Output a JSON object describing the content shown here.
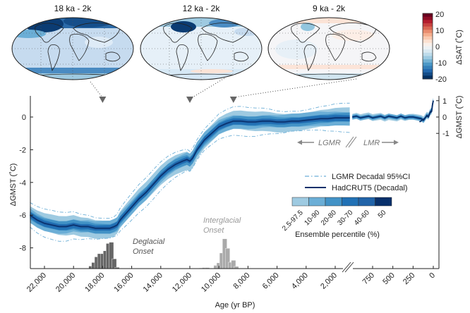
{
  "maps": [
    {
      "title": "18 ka - 2k",
      "anomaly_level": "strong-cooling"
    },
    {
      "title": "12 ka - 2k",
      "anomaly_level": "moderate-cooling"
    },
    {
      "title": "9 ka - 2k",
      "anomaly_level": "near-zero"
    }
  ],
  "colorbar": {
    "label": "ΔSAT (˚C)",
    "ticks": [
      "20",
      "10",
      "0",
      "-10",
      "-20"
    ],
    "range": [
      -20,
      20
    ],
    "colors": [
      "#67001f",
      "#b2182b",
      "#d6604d",
      "#f4a582",
      "#fddbc7",
      "#f7f7f7",
      "#d1e5f0",
      "#92c5de",
      "#4393c3",
      "#2166ac",
      "#053061"
    ]
  },
  "chart_data": {
    "type": "area",
    "title": "",
    "xlabel": "Age (yr BP)",
    "ylabel_left": "ΔGMST (˚C)",
    "ylabel_right": "ΔGMST (˚C)",
    "left_panel": {
      "name": "LGMR",
      "xlim": [
        23000,
        0
      ],
      "ylim": [
        -9.2,
        1.3
      ],
      "x_ticks": [
        22000,
        20000,
        18000,
        16000,
        14000,
        12000,
        10000,
        8000,
        6000,
        4000,
        2000
      ],
      "x_tick_labels": [
        "22,000",
        "20,000",
        "18,000",
        "16,000",
        "14,000",
        "12,000",
        "10,000",
        "8,000",
        "6,000",
        "4,000",
        "2,000"
      ],
      "y_ticks": [
        0,
        -2,
        -4,
        -6,
        -8
      ],
      "y_tick_labels": [
        "0",
        "-2",
        "-4",
        "-6",
        "-8"
      ],
      "median": {
        "x": [
          23000,
          22500,
          22000,
          21500,
          21000,
          20500,
          20000,
          19500,
          19000,
          18500,
          18000,
          17500,
          17200,
          17000,
          16800,
          16500,
          16000,
          15500,
          15000,
          14500,
          14000,
          13500,
          13000,
          12500,
          12200,
          12000,
          11800,
          11500,
          11000,
          10500,
          10000,
          9500,
          9000,
          8500,
          8000,
          7500,
          7000,
          6500,
          6000,
          5500,
          5000,
          4500,
          4000,
          3500,
          3000,
          2500,
          2000,
          1500,
          1000
        ],
        "y": [
          -6.0,
          -6.3,
          -6.5,
          -6.6,
          -6.7,
          -6.7,
          -6.6,
          -6.7,
          -6.7,
          -6.8,
          -6.8,
          -6.8,
          -6.7,
          -6.6,
          -6.3,
          -6.0,
          -5.5,
          -5.0,
          -4.6,
          -4.1,
          -3.6,
          -3.2,
          -2.9,
          -2.7,
          -2.6,
          -2.7,
          -2.5,
          -2.0,
          -1.4,
          -1.0,
          -0.6,
          -0.4,
          -0.25,
          -0.25,
          -0.3,
          -0.3,
          -0.25,
          -0.25,
          -0.3,
          -0.3,
          -0.25,
          -0.25,
          -0.2,
          -0.15,
          -0.1,
          -0.1,
          -0.05,
          -0.05,
          -0.05
        ]
      },
      "bands": [
        {
          "percentile": "2.5-97.5",
          "half_width": 0.55
        },
        {
          "percentile": "10-90",
          "half_width": 0.4
        },
        {
          "percentile": "20-80",
          "half_width": 0.28
        },
        {
          "percentile": "30-70",
          "half_width": 0.18
        },
        {
          "percentile": "40-60",
          "half_width": 0.09
        }
      ],
      "ci95_half_width": 0.75
    },
    "right_panel": {
      "name": "LMR",
      "xlim": [
        1000,
        0
      ],
      "ylim": [
        -9.2,
        1.3
      ],
      "x_ticks": [
        750,
        500,
        250,
        0
      ],
      "x_tick_labels": [
        "750",
        "500",
        "250",
        "0"
      ],
      "y_ticks": [
        1,
        0,
        -1
      ],
      "y_tick_labels": [
        "1",
        "0",
        "-1"
      ],
      "median": {
        "x": [
          1000,
          950,
          900,
          850,
          800,
          750,
          700,
          650,
          600,
          550,
          500,
          450,
          400,
          350,
          300,
          250,
          200,
          150,
          120,
          100,
          80,
          60,
          40,
          20,
          10,
          0
        ],
        "y": [
          0.0,
          0.05,
          -0.05,
          0.0,
          0.05,
          -0.05,
          0.0,
          0.05,
          -0.05,
          0.05,
          0.0,
          -0.05,
          0.05,
          -0.05,
          0.0,
          0.0,
          -0.05,
          -0.1,
          -0.2,
          -0.05,
          0.1,
          0.05,
          0.3,
          0.4,
          0.8,
          1.0
        ]
      },
      "hadcrut5": {
        "x": [
          170,
          140,
          110,
          80,
          60,
          40,
          20,
          10,
          0
        ],
        "y": [
          -0.3,
          -0.2,
          -0.1,
          0.05,
          0.0,
          0.25,
          0.35,
          0.75,
          1.0
        ]
      }
    },
    "markers": [
      {
        "age": 18000,
        "map": "18 ka - 2k"
      },
      {
        "age": 12000,
        "map": "12 ka - 2k"
      },
      {
        "age": 9000,
        "map": "9 ka - 2k"
      }
    ],
    "histograms": [
      {
        "name": "Deglacial Onset",
        "label_line1": "Deglacial",
        "label_line2": "Onset",
        "color": "#666666",
        "bin_centers": [
          18800,
          18600,
          18400,
          18200,
          18000,
          17800,
          17600,
          17400,
          17200,
          17000,
          16800,
          16600
        ],
        "relative_heights": [
          0.08,
          0.19,
          0.37,
          0.47,
          0.47,
          0.56,
          0.79,
          0.83,
          0.31,
          0.04,
          0.0,
          0.0
        ]
      },
      {
        "name": "Interglacial Onset",
        "label_line1": "Interglacial",
        "label_line2": "Onset",
        "color": "#aaaaaa",
        "bin_centers": [
          11200,
          11000,
          10800,
          10200,
          10000,
          9800,
          9600,
          9400,
          9200,
          9000,
          8800,
          8600
        ],
        "relative_heights": [
          0.02,
          0.03,
          0.03,
          0.1,
          0.18,
          0.49,
          0.94,
          0.64,
          0.2,
          0.26,
          0.07,
          0.0
        ]
      }
    ],
    "annotations": {
      "lgmr_arrow": "LGMR",
      "lmr_arrow": "LMR"
    },
    "legend": {
      "placement": "center-right",
      "entries": [
        {
          "label": "LGMR Decadal 95%CI",
          "style": "dash-dot",
          "color": "#6baed6"
        },
        {
          "label": "HadCRUT5 (Decadal)",
          "style": "solid",
          "color": "#08306b"
        }
      ],
      "percentile_title": "Ensemble percentile (%)",
      "percentile_labels": [
        "2.5-97.5",
        "10-90",
        "20-80",
        "30-70",
        "40-60",
        "50"
      ],
      "percentile_colors": [
        "#9ecae1",
        "#6baed6",
        "#4292c6",
        "#2171b5",
        "#2163a8",
        "#08306b"
      ]
    }
  }
}
